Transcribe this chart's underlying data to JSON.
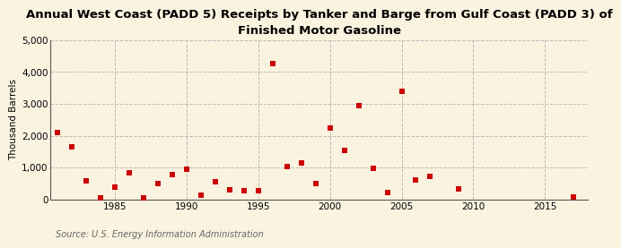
{
  "title": "Annual West Coast (PADD 5) Receipts by Tanker and Barge from Gulf Coast (PADD 3) of\nFinished Motor Gasoline",
  "ylabel": "Thousand Barrels",
  "source": "Source: U.S. Energy Information Administration",
  "background_color": "#faf3e0",
  "plot_background_color": "#faf3e0",
  "marker_color": "#cc0000",
  "years": [
    1981,
    1982,
    1983,
    1984,
    1985,
    1986,
    1987,
    1988,
    1989,
    1990,
    1991,
    1992,
    1993,
    1994,
    1995,
    1996,
    1997,
    1998,
    1999,
    2000,
    2001,
    2002,
    2003,
    2004,
    2005,
    2006,
    2007,
    2009,
    2017
  ],
  "values": [
    2100,
    1650,
    580,
    50,
    390,
    830,
    50,
    490,
    790,
    950,
    120,
    560,
    300,
    270,
    270,
    4250,
    1030,
    1130,
    490,
    2250,
    1530,
    2950,
    970,
    215,
    3400,
    620,
    730,
    330,
    90
  ],
  "ylim": [
    0,
    5000
  ],
  "yticks": [
    0,
    1000,
    2000,
    3000,
    4000,
    5000
  ],
  "xlim": [
    1980.5,
    2018
  ],
  "xticks": [
    1985,
    1990,
    1995,
    2000,
    2005,
    2010,
    2015
  ],
  "grid_color": "#bbbbbb",
  "title_fontsize": 9.5,
  "axis_fontsize": 7.5,
  "source_fontsize": 7
}
